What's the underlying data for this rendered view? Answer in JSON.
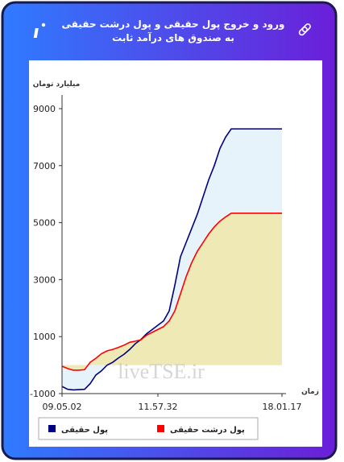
{
  "title": "ورود و خروج پول حقیقی و پول درشت حقیقی به صندوق های درآمد ثابت",
  "chart_data": {
    "type": "line",
    "y_label": "میلیارد تومان",
    "x_label": "زمان",
    "watermark": "liveTSE.ir",
    "categories": [
      "09.05.02",
      null,
      null,
      null,
      null,
      null,
      null,
      null,
      null,
      null,
      null,
      null,
      null,
      null,
      null,
      null,
      null,
      "11.57.32",
      null,
      null,
      null,
      null,
      null,
      null,
      null,
      null,
      null,
      null,
      null,
      null,
      null,
      null,
      null,
      null,
      null,
      null,
      null,
      null,
      null,
      "18.01.17"
    ],
    "series": [
      {
        "name": "پول حقیقی",
        "color": "#000080",
        "area_color": "#e6f3fb",
        "values": [
          -750,
          -850,
          -870,
          -860,
          -850,
          -650,
          -350,
          -200,
          0,
          100,
          250,
          380,
          550,
          750,
          900,
          1100,
          1250,
          1400,
          1550,
          1900,
          2800,
          3800,
          4300,
          4800,
          5300,
          5900,
          6500,
          7000,
          7600,
          8000,
          8290,
          8290,
          8290,
          8290,
          8290,
          8290,
          8290,
          8290,
          8290,
          8290
        ]
      },
      {
        "name": "پول درشت حقیقی",
        "color": "#ff0000",
        "area_color": "#eee9b5",
        "values": [
          -40,
          -120,
          -180,
          -180,
          -160,
          100,
          240,
          400,
          500,
          550,
          620,
          700,
          800,
          840,
          890,
          1050,
          1150,
          1250,
          1350,
          1550,
          1900,
          2500,
          3100,
          3600,
          4000,
          4300,
          4600,
          4850,
          5050,
          5200,
          5330,
          5330,
          5330,
          5330,
          5330,
          5330,
          5330,
          5330,
          5330,
          5330
        ]
      }
    ],
    "ylim": [
      -1000,
      9000
    ],
    "yticks": [
      -1000,
      1000,
      3000,
      5000,
      7000,
      9000
    ],
    "grid": false
  }
}
